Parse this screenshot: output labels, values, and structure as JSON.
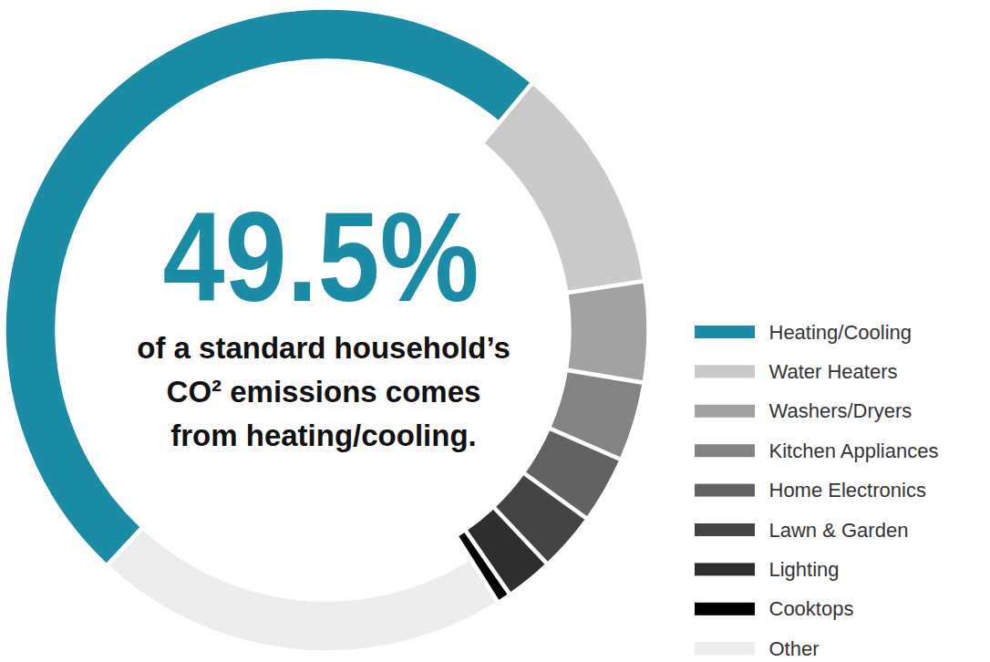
{
  "chart_data": {
    "type": "pie",
    "annotations": [
      "49.5%",
      "of a standard household’s",
      "CO² emissions comes",
      "from heating/cooling."
    ],
    "categories": [
      "Heating/Cooling",
      "Water Heaters",
      "Washers/Dryers",
      "Kitchen Appliances",
      "Home Electronics",
      "Lawn & Garden",
      "Lighting",
      "Cooktops",
      "Other"
    ],
    "values": [
      49.5,
      11.5,
      5,
      3.9,
      3.3,
      2.9,
      2.3,
      0.6,
      21
    ],
    "colors": [
      "#1a8ca6",
      "#c9c9c9",
      "#a2a2a2",
      "#838383",
      "#626262",
      "#444444",
      "#2e2e2e",
      "#000000",
      "#ececec"
    ],
    "legend": "right"
  }
}
